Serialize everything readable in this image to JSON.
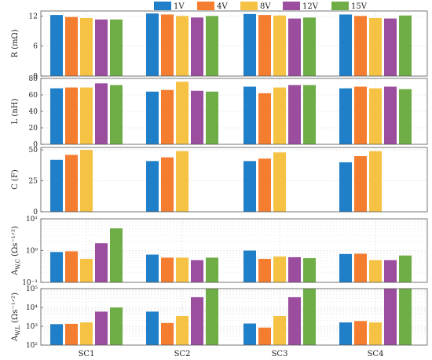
{
  "colors": [
    "#1f7fc8",
    "#f47d30",
    "#f5c244",
    "#9b4d9e",
    "#6fad46"
  ],
  "chart_data": {
    "type": "bar",
    "categories": [
      "SC1",
      "SC2",
      "SC3",
      "SC4"
    ],
    "legend": [
      "1V",
      "4V",
      "8V",
      "12V",
      "15V"
    ],
    "legend_position": "top",
    "grid": true,
    "panels": [
      {
        "ylabel_main": "R (m",
        "ylabel_sub": "",
        "ylabel_tail": "Ω)",
        "scale": "linear",
        "ylim": [
          0,
          13
        ],
        "yticks": [
          0,
          6,
          12
        ],
        "ytick_labels": [
          "0",
          "6",
          "12"
        ],
        "series": [
          {
            "name": "1V",
            "values": [
              12.2,
              12.5,
              12.4,
              12.3
            ]
          },
          {
            "name": "4V",
            "values": [
              11.8,
              12.3,
              12.2,
              12.0
            ]
          },
          {
            "name": "8V",
            "values": [
              11.6,
              12.0,
              12.1,
              11.6
            ]
          },
          {
            "name": "12V",
            "values": [
              11.3,
              11.7,
              11.5,
              11.5
            ]
          },
          {
            "name": "15V",
            "values": [
              11.3,
              12.0,
              11.7,
              12.1
            ]
          }
        ]
      },
      {
        "ylabel_main": "L (nH)",
        "ylabel_sub": "",
        "ylabel_tail": "",
        "scale": "linear",
        "ylim": [
          0,
          80
        ],
        "yticks": [
          0,
          20,
          40,
          60,
          80
        ],
        "ytick_labels": [
          "0",
          "20",
          "40",
          "60",
          "80"
        ],
        "series": [
          {
            "name": "1V",
            "values": [
              68,
              64,
              70,
              68
            ]
          },
          {
            "name": "4V",
            "values": [
              69,
              66,
              62,
              70
            ]
          },
          {
            "name": "8V",
            "values": [
              69,
              76,
              69,
              68
            ]
          },
          {
            "name": "12V",
            "values": [
              74,
              65,
              72,
              70
            ]
          },
          {
            "name": "15V",
            "values": [
              72,
              64,
              72,
              67
            ]
          }
        ]
      },
      {
        "ylabel_main": "C (F)",
        "ylabel_sub": "",
        "ylabel_tail": "",
        "scale": "linear",
        "ylim": [
          0,
          52
        ],
        "yticks": [
          0,
          25,
          50
        ],
        "ytick_labels": [
          "0",
          "25",
          "50"
        ],
        "series": [
          {
            "name": "1V",
            "values": [
              42,
              41,
              41,
              40
            ]
          },
          {
            "name": "4V",
            "values": [
              46,
              44,
              43,
              45
            ]
          },
          {
            "name": "8V",
            "values": [
              50,
              49,
              48,
              49
            ]
          },
          {
            "name": "12V",
            "values": [
              null,
              null,
              null,
              null
            ]
          },
          {
            "name": "15V",
            "values": [
              null,
              null,
              null,
              null
            ]
          }
        ]
      },
      {
        "ylabel_main": "A",
        "ylabel_sub": "W,C",
        "ylabel_tail": " (Ωs⁻¹ᐟ²)",
        "scale": "log",
        "ylim": [
          0.1,
          10
        ],
        "yticks": [
          0.1,
          1,
          10
        ],
        "ytick_labels": [
          "10⁻¹",
          "10⁰",
          "10¹"
        ],
        "series": [
          {
            "name": "1V",
            "values": [
              0.9,
              0.75,
              1.0,
              0.78
            ]
          },
          {
            "name": "4V",
            "values": [
              0.95,
              0.6,
              0.55,
              0.8
            ]
          },
          {
            "name": "8V",
            "values": [
              0.55,
              0.6,
              0.65,
              0.5
            ]
          },
          {
            "name": "12V",
            "values": [
              1.7,
              0.5,
              0.62,
              0.5
            ]
          },
          {
            "name": "15V",
            "values": [
              5.0,
              0.6,
              0.58,
              0.7
            ]
          }
        ]
      },
      {
        "ylabel_main": "A",
        "ylabel_sub": "W,L",
        "ylabel_tail": " (Ωs⁻¹ᐟ²)",
        "scale": "log",
        "ylim": [
          100,
          100000
        ],
        "yticks": [
          100,
          1000,
          10000,
          100000
        ],
        "ytick_labels": [
          "10²",
          "10³",
          "10⁴",
          "10⁵"
        ],
        "series": [
          {
            "name": "1V",
            "values": [
              1300,
              6000,
              1400,
              1600
            ]
          },
          {
            "name": "4V",
            "values": [
              1350,
              1500,
              850,
              1900
            ]
          },
          {
            "name": "8V",
            "values": [
              1600,
              3500,
              3500,
              1600
            ]
          },
          {
            "name": "12V",
            "values": [
              6000,
              35000,
              35000,
              100000
            ]
          },
          {
            "name": "15V",
            "values": [
              10000,
              100000,
              100000,
              100000
            ]
          }
        ]
      }
    ]
  }
}
